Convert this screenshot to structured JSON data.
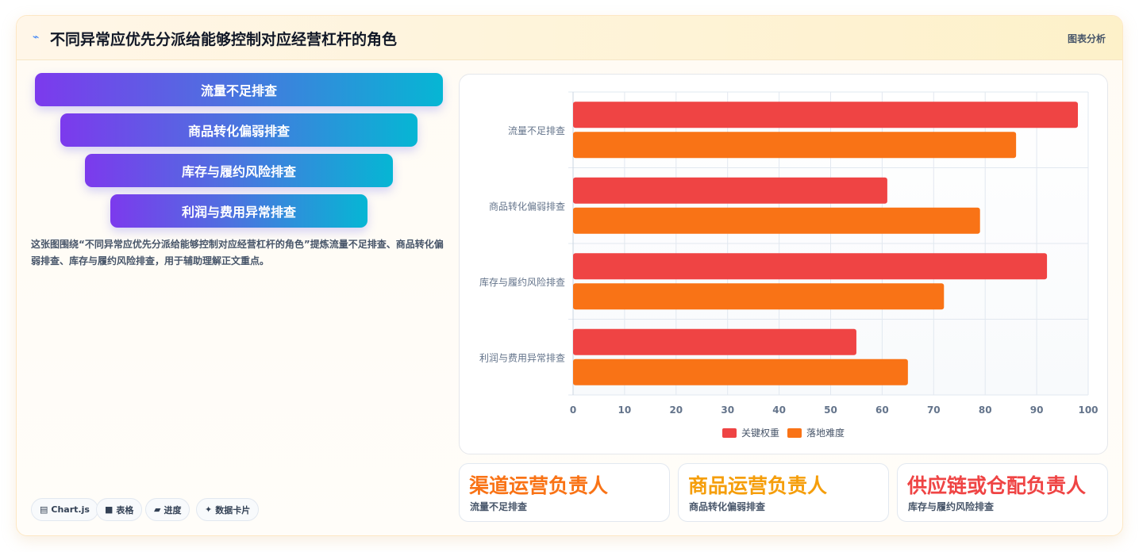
{
  "header": {
    "icon": "line-chart-icon",
    "title": "不同异常应优先分派给能够控制对应经营杠杆的角色",
    "tag": "图表分析"
  },
  "funnel": {
    "steps": [
      "流量不足排查",
      "商品转化偏弱排查",
      "库存与履约风险排查",
      "利润与费用异常排查"
    ]
  },
  "description": "这张图围绕“不同异常应优先分派给能够控制对应经营杠杆的角色”提炼流量不足排查、商品转化偏弱排查、库存与履约风险排查，用于辅助理解正文重点。",
  "badges": [
    {
      "icon": "chart-icon",
      "glyph": "▤",
      "label": "Chart.js"
    },
    {
      "icon": "table-icon",
      "glyph": "■",
      "label": "表格"
    },
    {
      "icon": "progress-icon",
      "glyph": "▰",
      "label": "进度"
    },
    {
      "icon": "sparkle-icon",
      "glyph": "✦",
      "label": "数据卡片"
    }
  ],
  "chart_data": {
    "type": "bar",
    "orientation": "horizontal",
    "categories": [
      "流量不足排查",
      "商品转化偏弱排查",
      "库存与履约风险排查",
      "利润与费用异常排查"
    ],
    "series": [
      {
        "name": "关键权重",
        "values": [
          98,
          61,
          92,
          55
        ],
        "color": "#ef4444"
      },
      {
        "name": "落地难度",
        "values": [
          86,
          79,
          72,
          65
        ],
        "color": "#f97316"
      }
    ],
    "xlim": [
      0,
      100
    ],
    "xticks": [
      0,
      10,
      20,
      30,
      40,
      50,
      60,
      70,
      80,
      90,
      100
    ],
    "grid": true,
    "legend_position": "bottom"
  },
  "roles": [
    {
      "title": "渠道运营负责人",
      "subtitle": "流量不足排查",
      "color": "#f97316"
    },
    {
      "title": "商品运营负责人",
      "subtitle": "商品转化偏弱排查",
      "color": "#f59e0b"
    },
    {
      "title": "供应链或仓配负责人",
      "subtitle": "库存与履约风险排查",
      "color": "#ef4444"
    }
  ]
}
